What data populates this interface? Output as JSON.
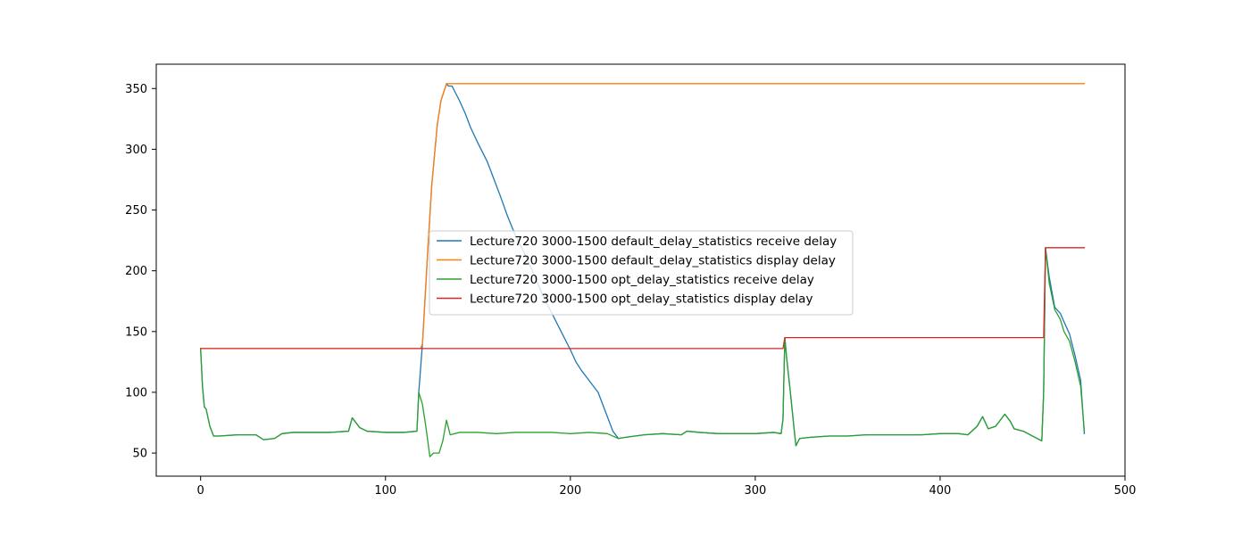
{
  "chart_data": {
    "type": "line",
    "title": "",
    "xlabel": "",
    "ylabel": "",
    "xlim": [
      -24,
      500
    ],
    "ylim": [
      31,
      370
    ],
    "xticks": [
      0,
      100,
      200,
      300,
      400,
      500
    ],
    "yticks": [
      50,
      100,
      150,
      200,
      250,
      300,
      350
    ],
    "grid": false,
    "legend_position": "center",
    "series": [
      {
        "name": "Lecture720 3000-1500 default_delay_statistics receive delay",
        "color": "#1f77b4",
        "points": [
          [
            0,
            136
          ],
          [
            1,
            105
          ],
          [
            2,
            88
          ],
          [
            3,
            86
          ],
          [
            5,
            72
          ],
          [
            7,
            64
          ],
          [
            10,
            64
          ],
          [
            20,
            65
          ],
          [
            30,
            65
          ],
          [
            34,
            61
          ],
          [
            40,
            62
          ],
          [
            44,
            66
          ],
          [
            50,
            67
          ],
          [
            60,
            67
          ],
          [
            70,
            67
          ],
          [
            80,
            68
          ],
          [
            82,
            79
          ],
          [
            86,
            71
          ],
          [
            90,
            68
          ],
          [
            100,
            67
          ],
          [
            110,
            67
          ],
          [
            117,
            68
          ],
          [
            118,
            100
          ],
          [
            120,
            140
          ],
          [
            123,
            220
          ],
          [
            125,
            270
          ],
          [
            128,
            320
          ],
          [
            130,
            340
          ],
          [
            133,
            354
          ],
          [
            134,
            352
          ],
          [
            136,
            352
          ],
          [
            140,
            340
          ],
          [
            143,
            330
          ],
          [
            146,
            318
          ],
          [
            150,
            305
          ],
          [
            155,
            290
          ],
          [
            158,
            278
          ],
          [
            162,
            262
          ],
          [
            166,
            245
          ],
          [
            170,
            230
          ],
          [
            175,
            215
          ],
          [
            180,
            198
          ],
          [
            185,
            180
          ],
          [
            190,
            165
          ],
          [
            195,
            150
          ],
          [
            200,
            135
          ],
          [
            203,
            125
          ],
          [
            206,
            118
          ],
          [
            210,
            110
          ],
          [
            215,
            100
          ],
          [
            220,
            80
          ],
          [
            223,
            68
          ],
          [
            226,
            62
          ],
          [
            230,
            63
          ],
          [
            240,
            65
          ],
          [
            250,
            66
          ],
          [
            260,
            65
          ],
          [
            263,
            68
          ],
          [
            270,
            67
          ],
          [
            280,
            66
          ],
          [
            290,
            66
          ],
          [
            300,
            66
          ],
          [
            310,
            67
          ],
          [
            314,
            66
          ],
          [
            315,
            78
          ],
          [
            316,
            145
          ],
          [
            317,
            128
          ],
          [
            319,
            100
          ],
          [
            321,
            70
          ],
          [
            322,
            56
          ],
          [
            324,
            62
          ],
          [
            330,
            63
          ],
          [
            340,
            64
          ],
          [
            350,
            64
          ],
          [
            360,
            65
          ],
          [
            370,
            65
          ],
          [
            380,
            65
          ],
          [
            390,
            65
          ],
          [
            400,
            66
          ],
          [
            410,
            66
          ],
          [
            415,
            65
          ],
          [
            420,
            72
          ],
          [
            423,
            80
          ],
          [
            426,
            70
          ],
          [
            430,
            72
          ],
          [
            435,
            82
          ],
          [
            438,
            76
          ],
          [
            440,
            70
          ],
          [
            445,
            68
          ],
          [
            450,
            64
          ],
          [
            455,
            60
          ],
          [
            456,
            100
          ],
          [
            457,
            219
          ],
          [
            459,
            195
          ],
          [
            462,
            170
          ],
          [
            465,
            165
          ],
          [
            467,
            158
          ],
          [
            470,
            148
          ],
          [
            473,
            130
          ],
          [
            476,
            110
          ],
          [
            478,
            66
          ]
        ]
      },
      {
        "name": "Lecture720 3000-1500 default_delay_statistics display delay",
        "color": "#ff7f0e",
        "points": [
          [
            0,
            136
          ],
          [
            119,
            136
          ],
          [
            120,
            140
          ],
          [
            123,
            220
          ],
          [
            125,
            270
          ],
          [
            128,
            320
          ],
          [
            130,
            340
          ],
          [
            133,
            354
          ],
          [
            478,
            354
          ]
        ]
      },
      {
        "name": "Lecture720 3000-1500 opt_delay_statistics receive delay",
        "color": "#2ca02c",
        "points": [
          [
            0,
            136
          ],
          [
            1,
            105
          ],
          [
            2,
            88
          ],
          [
            3,
            86
          ],
          [
            5,
            72
          ],
          [
            7,
            64
          ],
          [
            10,
            64
          ],
          [
            20,
            65
          ],
          [
            30,
            65
          ],
          [
            34,
            61
          ],
          [
            40,
            62
          ],
          [
            44,
            66
          ],
          [
            50,
            67
          ],
          [
            60,
            67
          ],
          [
            70,
            67
          ],
          [
            80,
            68
          ],
          [
            82,
            79
          ],
          [
            86,
            71
          ],
          [
            90,
            68
          ],
          [
            100,
            67
          ],
          [
            110,
            67
          ],
          [
            117,
            68
          ],
          [
            118,
            100
          ],
          [
            120,
            90
          ],
          [
            122,
            70
          ],
          [
            124,
            47
          ],
          [
            126,
            50
          ],
          [
            129,
            50
          ],
          [
            131,
            60
          ],
          [
            133,
            77
          ],
          [
            135,
            65
          ],
          [
            140,
            67
          ],
          [
            150,
            67
          ],
          [
            160,
            66
          ],
          [
            170,
            67
          ],
          [
            180,
            67
          ],
          [
            190,
            67
          ],
          [
            200,
            66
          ],
          [
            210,
            67
          ],
          [
            220,
            66
          ],
          [
            226,
            62
          ],
          [
            230,
            63
          ],
          [
            240,
            65
          ],
          [
            250,
            66
          ],
          [
            260,
            65
          ],
          [
            263,
            68
          ],
          [
            270,
            67
          ],
          [
            280,
            66
          ],
          [
            290,
            66
          ],
          [
            300,
            66
          ],
          [
            310,
            67
          ],
          [
            314,
            66
          ],
          [
            315,
            78
          ],
          [
            316,
            145
          ],
          [
            317,
            128
          ],
          [
            319,
            100
          ],
          [
            321,
            70
          ],
          [
            322,
            56
          ],
          [
            324,
            62
          ],
          [
            330,
            63
          ],
          [
            340,
            64
          ],
          [
            350,
            64
          ],
          [
            360,
            65
          ],
          [
            370,
            65
          ],
          [
            380,
            65
          ],
          [
            390,
            65
          ],
          [
            400,
            66
          ],
          [
            410,
            66
          ],
          [
            415,
            65
          ],
          [
            420,
            72
          ],
          [
            423,
            80
          ],
          [
            426,
            70
          ],
          [
            430,
            72
          ],
          [
            435,
            82
          ],
          [
            438,
            76
          ],
          [
            440,
            70
          ],
          [
            445,
            68
          ],
          [
            450,
            64
          ],
          [
            455,
            60
          ],
          [
            456,
            100
          ],
          [
            457,
            219
          ],
          [
            459,
            190
          ],
          [
            462,
            168
          ],
          [
            465,
            160
          ],
          [
            467,
            150
          ],
          [
            470,
            142
          ],
          [
            473,
            125
          ],
          [
            476,
            105
          ],
          [
            478,
            68
          ]
        ]
      },
      {
        "name": "Lecture720 3000-1500 opt_delay_statistics display delay",
        "color": "#d62728",
        "points": [
          [
            0,
            136
          ],
          [
            315,
            136
          ],
          [
            316,
            145
          ],
          [
            456,
            145
          ],
          [
            457,
            219
          ],
          [
            478,
            219
          ]
        ]
      }
    ]
  }
}
